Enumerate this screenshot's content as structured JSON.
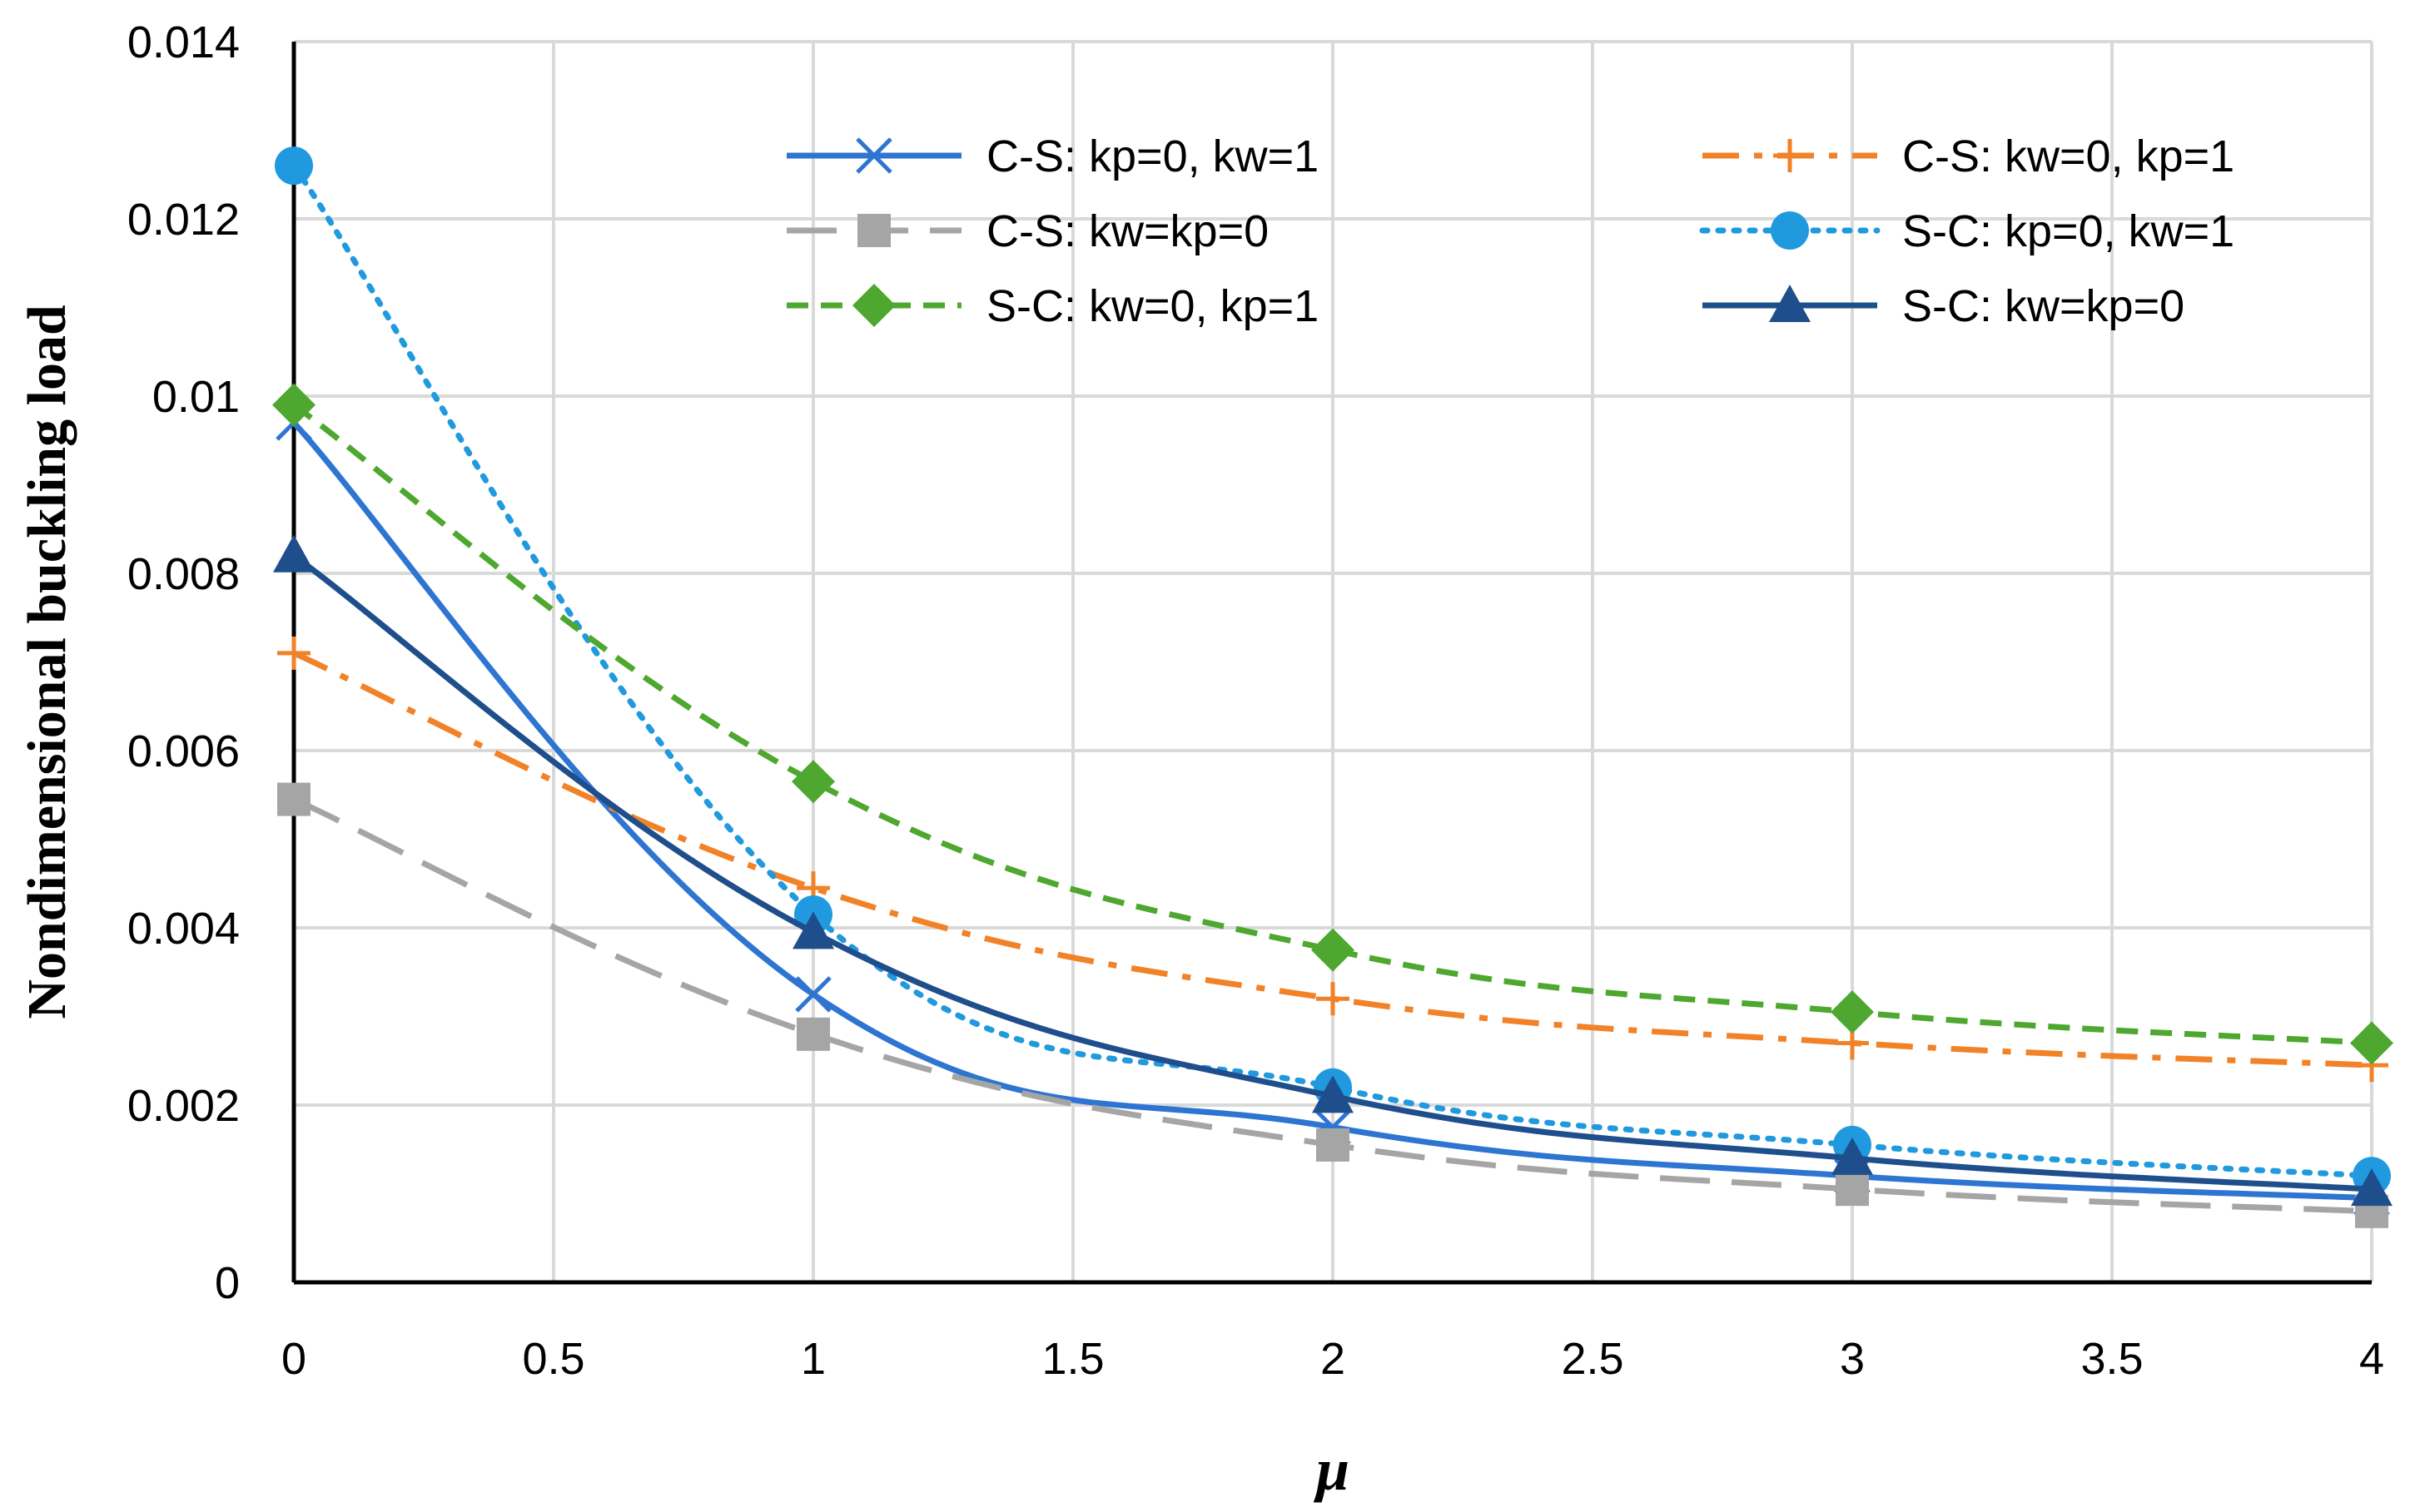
{
  "chart_data": {
    "type": "line",
    "title": "",
    "xlabel": "μ",
    "ylabel": "Nondimensional buckling load",
    "xlim": [
      0,
      4
    ],
    "ylim": [
      0,
      0.014
    ],
    "xticks": [
      "0",
      "0.5",
      "1",
      "1.5",
      "2",
      "2.5",
      "3",
      "3.5",
      "4"
    ],
    "yticks": [
      "0",
      "0.002",
      "0.004",
      "0.006",
      "0.008",
      "0.01",
      "0.012",
      "0.014"
    ],
    "grid": true,
    "legend": "inside-top",
    "x": [
      0,
      1,
      2,
      3,
      4
    ],
    "series": [
      {
        "name": "C-S: kp=0, kw=1",
        "values": [
          0.0097,
          0.00325,
          0.00175,
          0.0012,
          0.00095
        ],
        "color": "#2E75D2",
        "dash": "solid",
        "marker": "x"
      },
      {
        "name": "C-S: kw=0, kp=1",
        "values": [
          0.0071,
          0.00445,
          0.0032,
          0.0027,
          0.00245
        ],
        "color": "#F28228",
        "dash": "dashdot",
        "marker": "plus"
      },
      {
        "name": "C-S: kw=kp=0",
        "values": [
          0.00545,
          0.0028,
          0.00155,
          0.00105,
          0.0008
        ],
        "color": "#A5A5A5",
        "dash": "longdash",
        "marker": "square"
      },
      {
        "name": "S-C: kp=0, kw=1",
        "values": [
          0.0126,
          0.00415,
          0.0022,
          0.00155,
          0.0012
        ],
        "color": "#2199DE",
        "dash": "dotted",
        "marker": "circle"
      },
      {
        "name": "S-C: kw=0, kp=1",
        "values": [
          0.0099,
          0.00565,
          0.00375,
          0.00305,
          0.0027
        ],
        "color": "#4EA72E",
        "dash": "dash",
        "marker": "diamond"
      },
      {
        "name": "S-C: kw=kp=0",
        "values": [
          0.0082,
          0.00395,
          0.0021,
          0.0014,
          0.00105
        ],
        "color": "#1F4E8C",
        "dash": "solid",
        "marker": "triangle"
      }
    ]
  }
}
